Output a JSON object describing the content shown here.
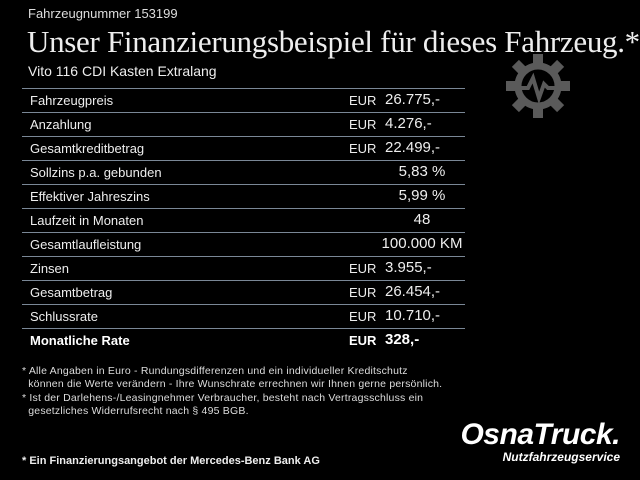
{
  "vehicle_number": "Fahrzeugnummer 153199",
  "title": "Unser Finanzierungsbeispiel für dieses Fahrzeug.*",
  "model": "Vito 116 CDI Kasten Extralang",
  "rows": [
    {
      "label": "Fahrzeugpreis",
      "currency": "EUR",
      "value": "26.775,-"
    },
    {
      "label": "Anzahlung",
      "currency": "EUR",
      "value": "4.276,-"
    },
    {
      "label": "Gesamtkreditbetrag",
      "currency": "EUR",
      "value": "22.499,-"
    },
    {
      "label": "Sollzins p.a. gebunden",
      "currency": "",
      "value": "5,83 %"
    },
    {
      "label": "Effektiver Jahreszins",
      "currency": "",
      "value": "5,99 %"
    },
    {
      "label": "Laufzeit in Monaten",
      "currency": "",
      "value": "48"
    },
    {
      "label": "Gesamtlaufleistung",
      "currency": "",
      "value": "100.000 KM"
    },
    {
      "label": "Zinsen",
      "currency": "EUR",
      "value": "3.955,-"
    },
    {
      "label": "Gesamtbetrag",
      "currency": "EUR",
      "value": "26.454,-"
    },
    {
      "label": "Schlussrate",
      "currency": "EUR",
      "value": "10.710,-"
    },
    {
      "label": "Monatliche Rate",
      "currency": "EUR",
      "value": "328,-"
    }
  ],
  "notes": [
    "* Alle Angaben in Euro - Rundungsdifferenzen und ein individueller Kreditschutz",
    "  können die Werte verändern - Ihre Wunschrate errechnen wir Ihnen gerne persönlich.",
    "* Ist der Darlehens-/Leasingnehmer Verbraucher, besteht nach Vertragsschluss ein",
    "  gesetzliches Widerrufsrecht nach § 495 BGB."
  ],
  "bank_note": "* Ein Finanzierungsangebot der Mercedes-Benz Bank AG",
  "logo": {
    "name": "OsnaTruck.",
    "sub": "Nutzfahrzeugservice"
  },
  "icons": {
    "gear": "gear-pulse-icon"
  },
  "colors": {
    "background": "#000000",
    "divider": "#7a8796",
    "gear": "#5a5a5a"
  }
}
